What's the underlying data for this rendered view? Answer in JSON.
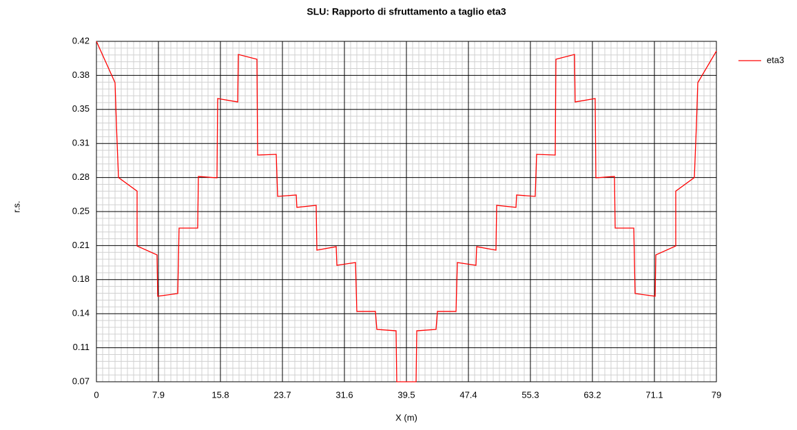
{
  "chart_data": {
    "type": "line",
    "title": "SLU: Rapporto di sfruttamento a taglio eta3",
    "x_label": "X (m)",
    "y_label": "r.s.",
    "x": [
      0,
      2.37,
      2.55,
      2.81,
      5.18,
      5.18,
      7.72,
      7.81,
      10.36,
      10.53,
      12.9,
      12.99,
      15.36,
      15.45,
      18.0,
      18.08,
      20.45,
      20.54,
      22.91,
      23.09,
      25.46,
      25.54,
      28.0,
      28.09,
      30.55,
      30.64,
      33.01,
      33.18,
      35.55,
      35.73,
      38.18,
      38.27,
      40.73,
      40.82,
      43.27,
      43.45,
      45.82,
      45.99,
      48.36,
      48.45,
      50.91,
      51.0,
      53.46,
      53.54,
      55.91,
      56.09,
      58.46,
      58.55,
      60.92,
      61.0,
      63.55,
      63.64,
      66.01,
      66.1,
      68.47,
      68.64,
      71.19,
      71.28,
      73.82,
      73.82,
      76.19,
      76.45,
      76.63,
      79
    ],
    "series": [
      {
        "name": "eta3",
        "color": "#ff0000",
        "values": [
          0.42,
          0.3775,
          0.3336,
          0.28,
          0.266,
          0.2096,
          0.2004,
          0.1579,
          0.1607,
          0.228,
          0.228,
          0.2811,
          0.2797,
          0.3612,
          0.3577,
          0.4065,
          0.4016,
          0.3031,
          0.3038,
          0.2606,
          0.262,
          0.2493,
          0.2514,
          0.2053,
          0.2089,
          0.1897,
          0.1926,
          0.1423,
          0.1423,
          0.1238,
          0.1224,
          0.07,
          0.07,
          0.1224,
          0.1238,
          0.1423,
          0.1423,
          0.1926,
          0.1897,
          0.2089,
          0.2053,
          0.2514,
          0.2493,
          0.262,
          0.2606,
          0.3038,
          0.3031,
          0.4016,
          0.4065,
          0.3577,
          0.3612,
          0.2797,
          0.2811,
          0.228,
          0.228,
          0.1607,
          0.1579,
          0.2004,
          0.2096,
          0.266,
          0.28,
          0.3336,
          0.3775,
          0.41
        ]
      }
    ],
    "xlim": [
      0,
      79
    ],
    "xticks": [
      0,
      7.9,
      15.8,
      23.7,
      31.6,
      39.5,
      47.4,
      55.3,
      63.2,
      71.1,
      79
    ],
    "ylim": [
      0.07,
      0.42
    ],
    "yticks": [
      0.07,
      {
        "value": 0.105,
        "label": "0.11"
      },
      0.14,
      {
        "value": 0.175,
        "label": "0.18"
      },
      0.21,
      {
        "value": 0.245,
        "label": "0.25"
      },
      0.28,
      {
        "value": 0.315,
        "label": "0.31"
      },
      0.35,
      {
        "value": 0.385,
        "label": "0.38"
      },
      0.42
    ],
    "grid": true,
    "legend": "right"
  }
}
